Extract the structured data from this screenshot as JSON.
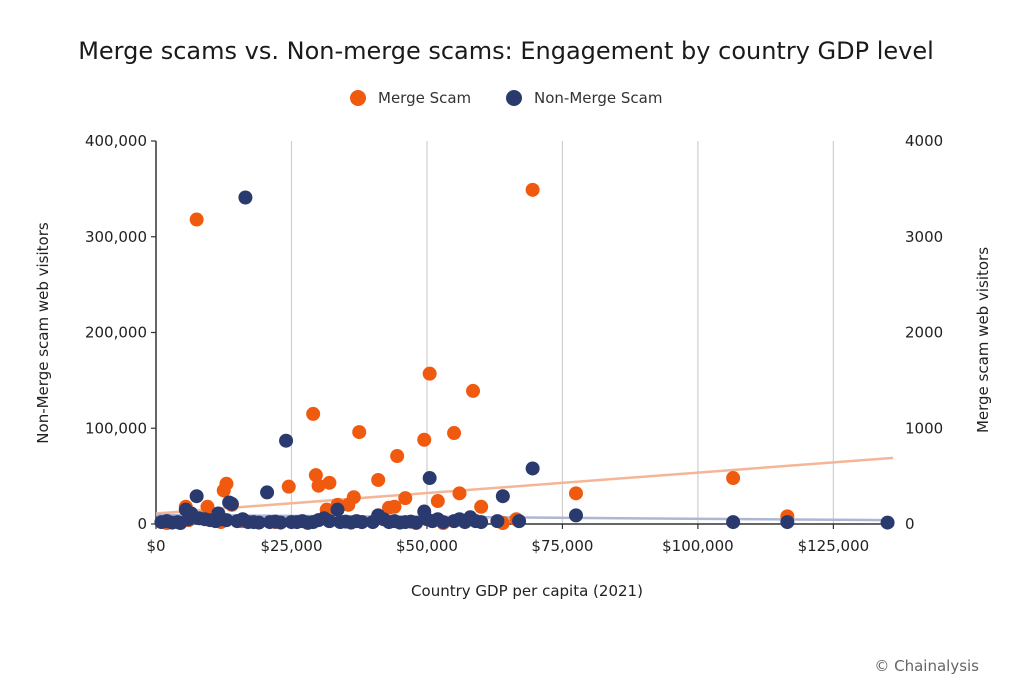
{
  "chart_data": {
    "type": "scatter",
    "title": "Merge scams vs. Non-merge scams: Engagement by country GDP level",
    "xlabel": "Country GDP per capita (2021)",
    "ylabel_left": "Non-Merge scam web visitors",
    "ylabel_right": "Merge scam web visitors",
    "xlim": [
      0,
      136000
    ],
    "ylim_left": [
      0,
      400000
    ],
    "ylim_right": [
      0,
      4000
    ],
    "x_ticks": [
      0,
      25000,
      50000,
      75000,
      100000,
      125000
    ],
    "x_tick_labels": [
      "$0",
      "$25,000",
      "$50,000",
      "$75,000",
      "$100,000",
      "$125,000"
    ],
    "y_left_ticks": [
      0,
      100000,
      200000,
      300000,
      400000
    ],
    "y_left_tick_labels": [
      "0",
      "100,000",
      "200,000",
      "300,000",
      "400,000"
    ],
    "y_right_ticks": [
      0,
      1000,
      2000,
      3000,
      4000
    ],
    "y_right_tick_labels": [
      "0",
      "1000",
      "2000",
      "3000",
      "4000"
    ],
    "grid": "vertical",
    "legend_position": "top-center",
    "credit": "© Chainalysis",
    "series": [
      {
        "name": "Merge Scam",
        "color": "#f05a0f",
        "axis": "right",
        "points": [
          [
            7500,
            3180
          ],
          [
            5500,
            180
          ],
          [
            9500,
            180
          ],
          [
            12500,
            350
          ],
          [
            13000,
            420
          ],
          [
            14000,
            200
          ],
          [
            24500,
            390
          ],
          [
            29000,
            1150
          ],
          [
            29500,
            510
          ],
          [
            30000,
            400
          ],
          [
            31500,
            150
          ],
          [
            32000,
            430
          ],
          [
            33500,
            200
          ],
          [
            35500,
            200
          ],
          [
            36500,
            280
          ],
          [
            37500,
            960
          ],
          [
            41000,
            460
          ],
          [
            43000,
            170
          ],
          [
            44000,
            180
          ],
          [
            44500,
            710
          ],
          [
            46000,
            270
          ],
          [
            49500,
            880
          ],
          [
            50500,
            1570
          ],
          [
            52000,
            240
          ],
          [
            55000,
            950
          ],
          [
            56000,
            320
          ],
          [
            58500,
            1390
          ],
          [
            60000,
            180
          ],
          [
            64000,
            10
          ],
          [
            66500,
            50
          ],
          [
            69500,
            3490
          ],
          [
            77500,
            320
          ],
          [
            106500,
            480
          ],
          [
            116500,
            80
          ],
          [
            2000,
            10
          ],
          [
            6000,
            40
          ],
          [
            12000,
            20
          ],
          [
            16000,
            30
          ],
          [
            22000,
            20
          ],
          [
            28000,
            10
          ],
          [
            38000,
            20
          ],
          [
            48000,
            10
          ],
          [
            53000,
            10
          ]
        ],
        "trendline": [
          [
            0,
            110
          ],
          [
            136000,
            690
          ]
        ]
      },
      {
        "name": "Non-Merge Scam",
        "color": "#2b3a6e",
        "axis": "left",
        "points": [
          [
            16500,
            341000
          ],
          [
            24000,
            87000
          ],
          [
            20500,
            33000
          ],
          [
            7500,
            29000
          ],
          [
            13500,
            22500
          ],
          [
            5500,
            15000
          ],
          [
            11500,
            11000
          ],
          [
            14000,
            21000
          ],
          [
            33500,
            15000
          ],
          [
            50500,
            48000
          ],
          [
            49500,
            13000
          ],
          [
            64000,
            29000
          ],
          [
            69500,
            58000
          ],
          [
            77500,
            9000
          ],
          [
            106500,
            2000
          ],
          [
            116500,
            2000
          ],
          [
            135000,
            1500
          ],
          [
            41000,
            9000
          ],
          [
            58000,
            7000
          ],
          [
            63000,
            3000
          ],
          [
            67000,
            3000
          ],
          [
            1000,
            2000
          ],
          [
            2000,
            3000
          ],
          [
            3000,
            1500
          ],
          [
            4000,
            2000
          ],
          [
            4500,
            1000
          ],
          [
            6000,
            5000
          ],
          [
            6500,
            11000
          ],
          [
            8000,
            6000
          ],
          [
            9000,
            5000
          ],
          [
            10000,
            4000
          ],
          [
            11000,
            3000
          ],
          [
            12000,
            5000
          ],
          [
            13000,
            4000
          ],
          [
            15000,
            3000
          ],
          [
            16000,
            5000
          ],
          [
            17000,
            2000
          ],
          [
            18000,
            2000
          ],
          [
            19000,
            1500
          ],
          [
            21000,
            2000
          ],
          [
            22000,
            2500
          ],
          [
            23000,
            1500
          ],
          [
            25000,
            2000
          ],
          [
            26000,
            2000
          ],
          [
            27000,
            3000
          ],
          [
            28000,
            1500
          ],
          [
            29000,
            2000
          ],
          [
            30000,
            4000
          ],
          [
            31000,
            6000
          ],
          [
            32000,
            3000
          ],
          [
            34000,
            2000
          ],
          [
            35000,
            2500
          ],
          [
            36000,
            1500
          ],
          [
            37000,
            3000
          ],
          [
            38000,
            2000
          ],
          [
            40000,
            2000
          ],
          [
            42000,
            5000
          ],
          [
            43000,
            2000
          ],
          [
            44000,
            3000
          ],
          [
            45000,
            1500
          ],
          [
            46000,
            2000
          ],
          [
            47000,
            2500
          ],
          [
            48000,
            1500
          ],
          [
            50000,
            5000
          ],
          [
            51000,
            3000
          ],
          [
            52000,
            5000
          ],
          [
            53000,
            2000
          ],
          [
            55000,
            3000
          ],
          [
            56000,
            5000
          ],
          [
            57000,
            2000
          ],
          [
            59000,
            3000
          ],
          [
            60000,
            2000
          ]
        ],
        "trendline": [
          [
            0,
            9500
          ],
          [
            136000,
            4000
          ]
        ]
      }
    ]
  }
}
